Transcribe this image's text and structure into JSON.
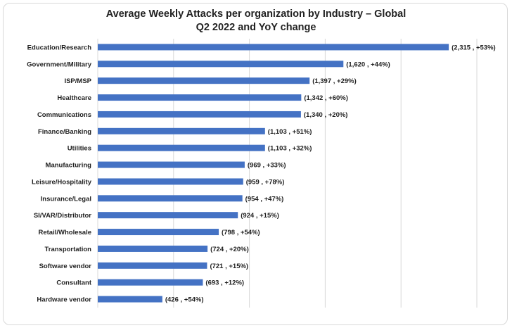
{
  "chart_data": {
    "type": "bar",
    "orientation": "horizontal",
    "title": "Average Weekly Attacks per organization by Industry – Global",
    "subtitle": "Q2 2022 and YoY change",
    "categories": [
      "Education/Research",
      "Government/Military",
      "ISP/MSP",
      "Healthcare",
      "Communications",
      "Finance/Banking",
      "Utilities",
      "Manufacturing",
      "Leisure/Hospitality",
      "Insurance/Legal",
      "SI/VAR/Distributor",
      "Retail/Wholesale",
      "Transportation",
      "Software vendor",
      "Consultant",
      "Hardware vendor"
    ],
    "values": [
      2315,
      1620,
      1397,
      1342,
      1340,
      1103,
      1103,
      969,
      959,
      954,
      924,
      798,
      724,
      721,
      693,
      426
    ],
    "data_labels": [
      "(2,315 , +53%)",
      "(1,620 , +44%)",
      "(1,397 , +29%)",
      "(1,342 , +60%)",
      "(1,340 , +20%)",
      "(1,103 , +51%)",
      "(1,103 , +32%)",
      "(969 , +33%)",
      "(959 , +78%)",
      "(954 , +47%)",
      "(924 , +15%)",
      "(798 , +54%)",
      "(724 , +20%)",
      "(721 , +15%)",
      "(693 , +12%)",
      "(426 , +54%)"
    ],
    "xlim": [
      0,
      2500
    ],
    "grid": true,
    "bar_color": "#4472c4",
    "grid_color": "#d9d9d9"
  }
}
